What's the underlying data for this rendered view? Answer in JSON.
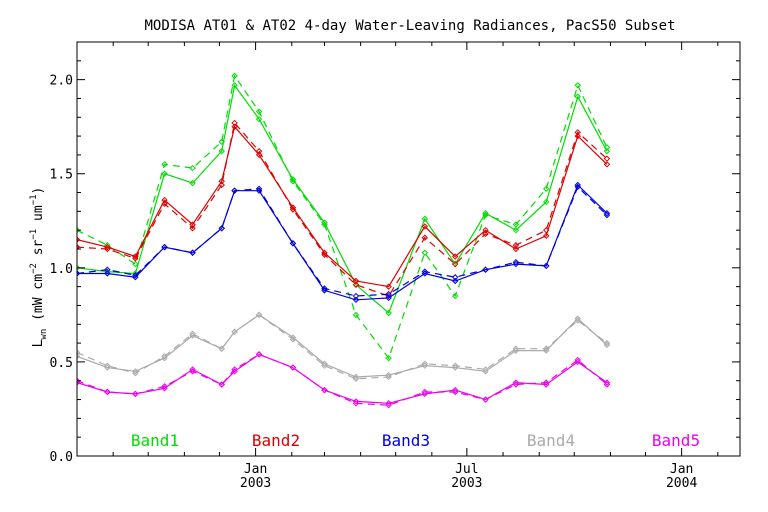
{
  "chart_data": {
    "type": "line",
    "title": "MODISA AT01 & AT02 4-day Water-Leaving Radiances, PacS50 Subset",
    "ylabel": "L_wn (mW cm^-2 sr^-1 um^-1)",
    "ylabel_parts": {
      "main": "L",
      "sub": "wn",
      "open": " (mW cm",
      "exp1": "−2",
      "mid1": " sr",
      "exp2": "−1",
      "mid2": " um",
      "exp3": "−1",
      "close": ")"
    },
    "ylim": [
      0,
      2.2
    ],
    "xlim": [
      "2002-08-01",
      "2004-02-20"
    ],
    "yticks": [
      {
        "value": 0.0,
        "label": "0.0"
      },
      {
        "value": 0.5,
        "label": "0.5"
      },
      {
        "value": 1.0,
        "label": "1.0"
      },
      {
        "value": 1.5,
        "label": "1.5"
      },
      {
        "value": 2.0,
        "label": "2.0"
      }
    ],
    "xticks_major": [
      {
        "date": "2003-01-01",
        "label": "Jan",
        "year": "2003"
      },
      {
        "date": "2003-07-01",
        "label": "Jul",
        "year": "2003"
      },
      {
        "date": "2004-01-01",
        "label": "Jan",
        "year": "2004"
      }
    ],
    "xticks_minor": [
      "2002-09-01",
      "2002-10-01",
      "2002-11-01",
      "2002-12-01",
      "2003-02-01",
      "2003-03-01",
      "2003-04-01",
      "2003-05-01",
      "2003-06-01",
      "2003-08-01",
      "2003-09-01",
      "2003-10-01",
      "2003-11-01",
      "2003-12-01",
      "2004-02-01"
    ],
    "dates": [
      "2002-08-01",
      "2002-08-27",
      "2002-09-20",
      "2002-10-15",
      "2002-11-08",
      "2002-12-03",
      "2002-12-14",
      "2003-01-04",
      "2003-02-02",
      "2003-03-01",
      "2003-03-28",
      "2003-04-25",
      "2003-05-26",
      "2003-06-21",
      "2003-07-17",
      "2003-08-12",
      "2003-09-07",
      "2003-10-04",
      "2003-10-29",
      "2003-11-24",
      "2004-01-01",
      "2004-02-20"
    ],
    "legend_placement": "bottom",
    "series": [
      {
        "name": "Band1",
        "color": "#00dd00",
        "AT01": [
          1.0,
          0.98,
          0.97,
          1.5,
          1.45,
          1.62,
          1.97,
          1.79,
          1.47,
          1.24,
          0.91,
          0.76,
          1.26,
          1.02,
          1.29,
          1.2,
          1.35,
          1.91,
          1.62,
          null,
          null,
          null
        ],
        "AT02": [
          1.2,
          1.12,
          1.02,
          1.55,
          1.53,
          1.67,
          2.02,
          1.83,
          1.46,
          1.23,
          0.75,
          0.52,
          1.08,
          0.85,
          1.28,
          1.23,
          1.42,
          1.97,
          1.64,
          null,
          null,
          null
        ]
      },
      {
        "name": "Band2",
        "color": "#dd0000",
        "AT01": [
          1.15,
          1.11,
          1.06,
          1.36,
          1.23,
          1.46,
          1.75,
          1.6,
          1.32,
          1.08,
          0.93,
          0.9,
          1.22,
          1.06,
          1.2,
          1.1,
          1.17,
          1.7,
          1.55,
          null,
          null,
          null
        ],
        "AT02": [
          1.11,
          1.1,
          1.05,
          1.34,
          1.21,
          1.44,
          1.77,
          1.62,
          1.31,
          1.07,
          0.91,
          0.85,
          1.16,
          1.02,
          1.18,
          1.12,
          1.2,
          1.72,
          1.58,
          null,
          null,
          null
        ]
      },
      {
        "name": "Band3",
        "color": "#0000dd",
        "AT01": [
          0.97,
          0.97,
          0.95,
          1.11,
          1.08,
          1.21,
          1.41,
          1.41,
          1.13,
          0.88,
          0.83,
          0.84,
          0.97,
          0.93,
          0.99,
          1.02,
          1.01,
          1.44,
          1.29,
          null,
          null,
          null
        ],
        "AT02": [
          0.97,
          0.99,
          0.96,
          1.11,
          1.08,
          1.21,
          1.41,
          1.42,
          1.13,
          0.89,
          0.85,
          0.86,
          0.98,
          0.95,
          0.99,
          1.03,
          1.01,
          1.43,
          1.28,
          null,
          null,
          null
        ]
      },
      {
        "name": "Band4",
        "color": "#aaaaaa",
        "AT01": [
          0.53,
          0.47,
          0.45,
          0.52,
          0.64,
          0.57,
          0.66,
          0.75,
          0.63,
          0.49,
          0.42,
          0.43,
          0.48,
          0.47,
          0.45,
          0.56,
          0.56,
          0.73,
          0.59,
          null,
          null,
          null
        ],
        "AT02": [
          0.55,
          0.48,
          0.44,
          0.53,
          0.65,
          0.57,
          0.66,
          0.75,
          0.62,
          0.48,
          0.41,
          0.42,
          0.49,
          0.48,
          0.46,
          0.57,
          0.57,
          0.72,
          0.6,
          null,
          null,
          null
        ]
      },
      {
        "name": "Band5",
        "color": "#ee00ee",
        "AT01": [
          0.39,
          0.34,
          0.33,
          0.36,
          0.46,
          0.38,
          0.45,
          0.54,
          0.47,
          0.35,
          0.29,
          0.28,
          0.33,
          0.35,
          0.3,
          0.39,
          0.38,
          0.5,
          0.39,
          null,
          null,
          null
        ],
        "AT02": [
          0.4,
          0.34,
          0.33,
          0.37,
          0.45,
          0.38,
          0.46,
          0.54,
          0.47,
          0.35,
          0.28,
          0.27,
          0.34,
          0.34,
          0.3,
          0.38,
          0.39,
          0.51,
          0.38,
          null,
          null,
          null
        ]
      }
    ]
  }
}
